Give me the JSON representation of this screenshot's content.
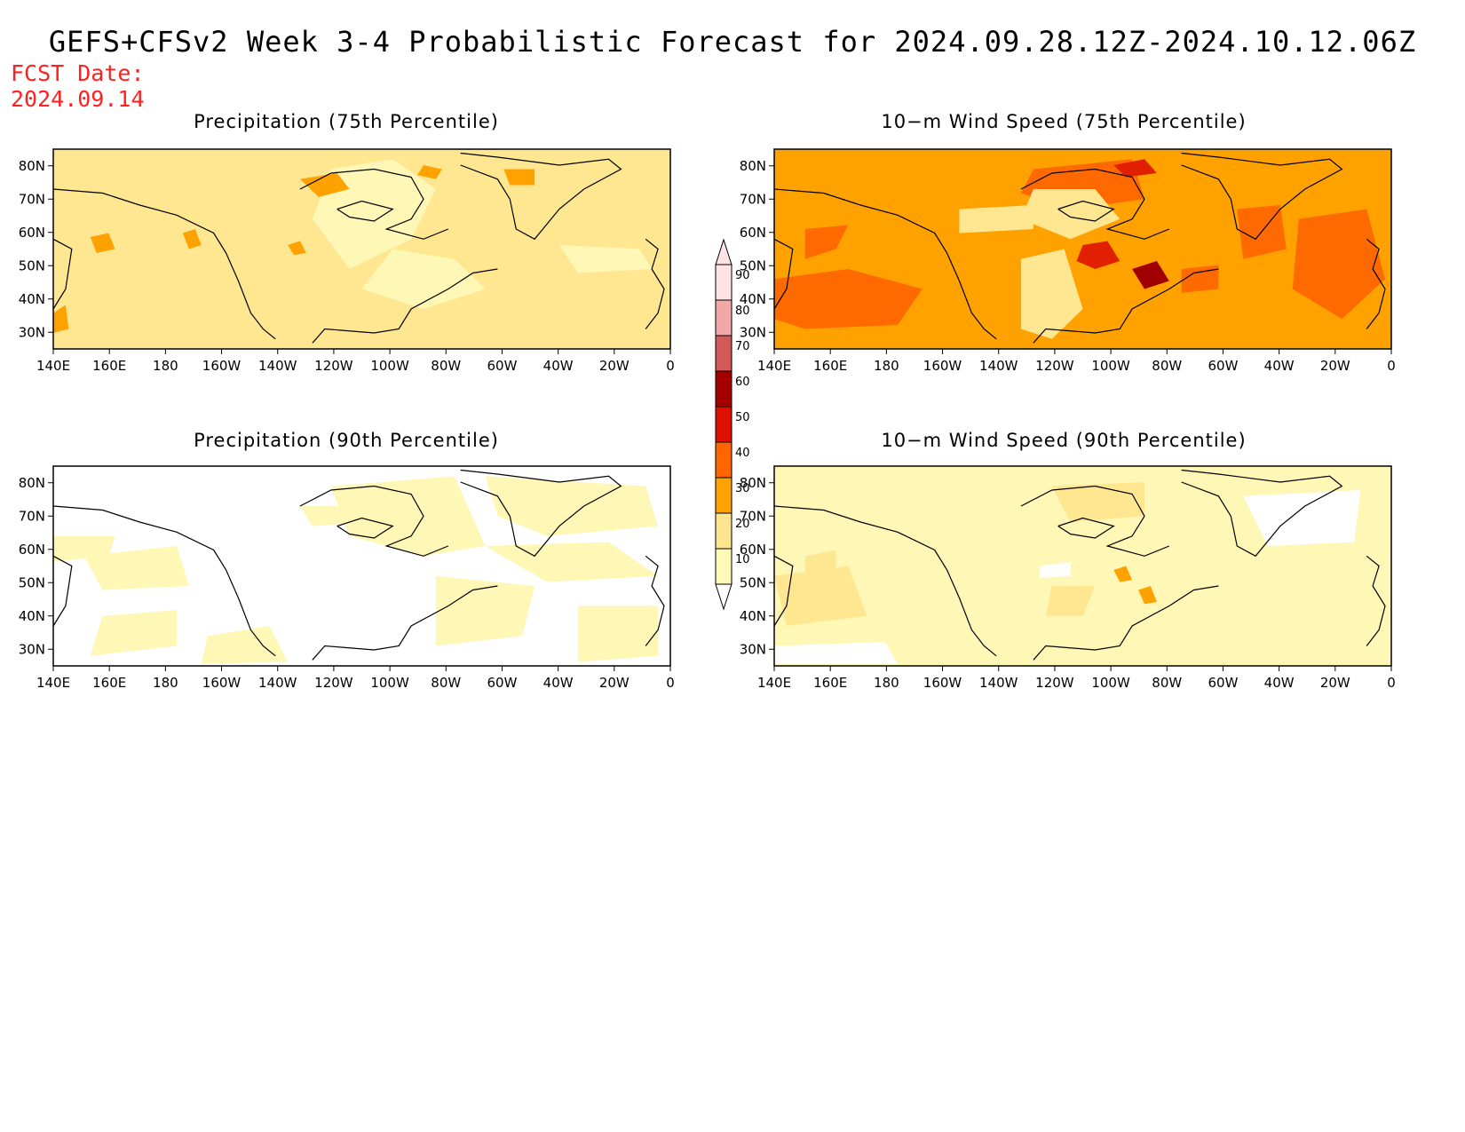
{
  "header": {
    "title": "GEFS+CFSv2 Week 3-4 Probabilistic Forecast for 2024.09.28.12Z-2024.10.12.06Z",
    "fcst_label": "FCST Date:",
    "fcst_date": "2024.09.14"
  },
  "panels": [
    {
      "id": "precip75",
      "title": "Precipitation (75th Percentile)",
      "base_level": 20,
      "patch_levels": [
        10,
        30,
        30,
        30,
        30,
        10,
        30,
        30,
        10,
        30
      ]
    },
    {
      "id": "wind75",
      "title": "10−m Wind Speed (75th Percentile)",
      "base_level": 30,
      "patch_levels": [
        40,
        40,
        40,
        20,
        50,
        60,
        50,
        40,
        20,
        40,
        40,
        20
      ]
    },
    {
      "id": "precip90",
      "title": "Precipitation (90th Percentile)",
      "base_level": 0,
      "patch_levels": [
        10,
        10,
        10,
        10,
        10,
        10,
        10,
        10,
        10,
        10
      ]
    },
    {
      "id": "wind90",
      "title": "10−m Wind Speed (90th Percentile)",
      "base_level": 10,
      "patch_levels": [
        20,
        20,
        20,
        30,
        30,
        0,
        0,
        20,
        0
      ]
    }
  ],
  "axes": {
    "x_ticks": [
      "140E",
      "160E",
      "180",
      "160W",
      "140W",
      "120W",
      "100W",
      "80W",
      "60W",
      "40W",
      "20W",
      "0"
    ],
    "y_ticks": [
      "80N",
      "70N",
      "60N",
      "50N",
      "40N",
      "30N"
    ]
  },
  "colorbar": {
    "labels": [
      "10",
      "20",
      "30",
      "40",
      "50",
      "60",
      "70",
      "80",
      "90"
    ],
    "colors": [
      "#fff9b8",
      "#ffe590",
      "#ffa300",
      "#ff6600",
      "#e01000",
      "#a50000",
      "#d45a5a",
      "#f0a8a8",
      "#fde3e3"
    ]
  },
  "level_colors": {
    "0": "#ffffff",
    "10": "#fff7b5",
    "20": "#ffe792",
    "30": "#ffa200",
    "40": "#ff6a00",
    "50": "#e02000",
    "60": "#a00000"
  }
}
